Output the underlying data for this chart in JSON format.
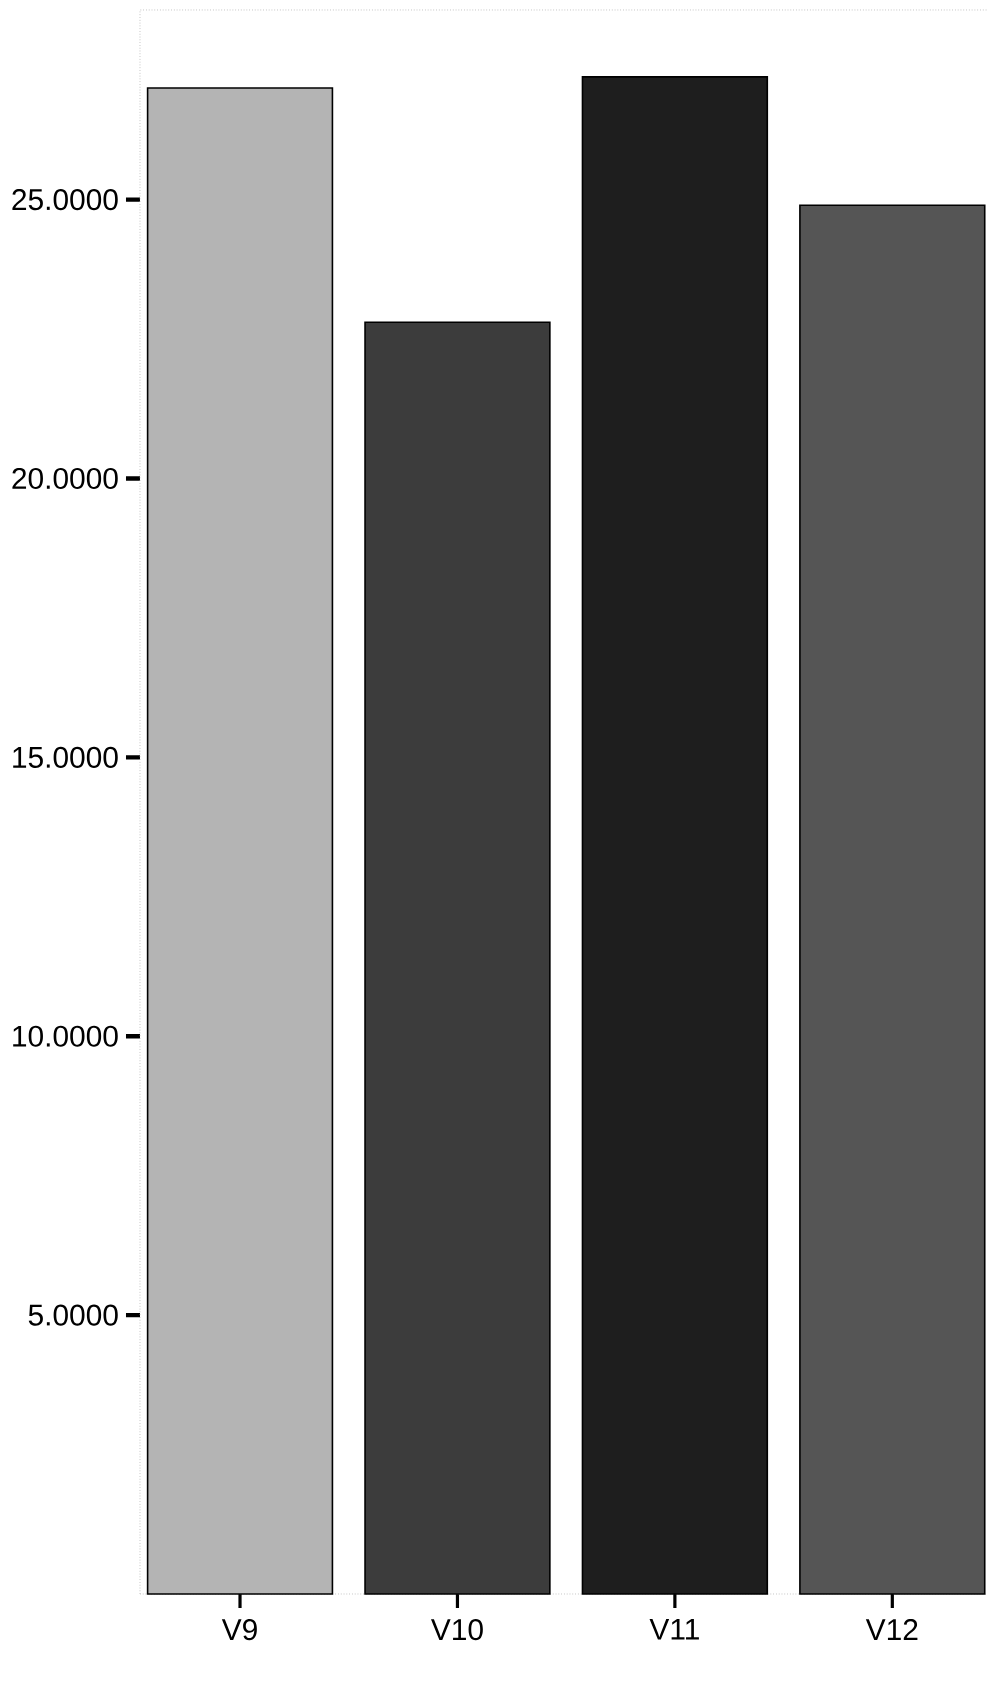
{
  "chart_data": {
    "type": "bar",
    "categories": [
      "V9",
      "V10",
      "V11",
      "V12"
    ],
    "values": [
      27.0,
      22.8,
      27.2,
      24.9
    ],
    "colors": [
      "#b4b4b4",
      "#3c3c3c",
      "#1e1e1e",
      "#555555"
    ],
    "ylim": [
      0,
      28.4
    ],
    "yticks": [
      {
        "value": 5,
        "label": "5.0000"
      },
      {
        "value": 10,
        "label": "10.0000"
      },
      {
        "value": 15,
        "label": "15.0000"
      },
      {
        "value": 20,
        "label": "20.0000"
      },
      {
        "value": 25,
        "label": "25.0000"
      }
    ],
    "grid": false
  }
}
